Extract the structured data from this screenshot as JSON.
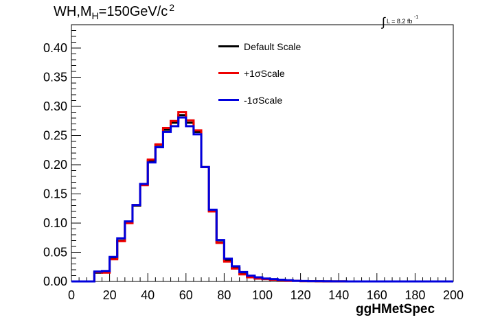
{
  "header": {
    "title_main": "WH,M",
    "title_sub": "H",
    "title_rest": "=150GeV/c",
    "title_sup": "2",
    "lumi_integral": "∫",
    "lumi_text": "L = 8.2 fb",
    "lumi_sup": "-1"
  },
  "chart_data": {
    "type": "line",
    "xlabel": "ggHMetSpec",
    "ylabel": "",
    "xlim": [
      0,
      200
    ],
    "ylim": [
      0,
      0.44
    ],
    "grid": false,
    "legend_position": "top-center",
    "x_ticks": [
      "0",
      "20",
      "40",
      "60",
      "80",
      "100",
      "120",
      "140",
      "160",
      "180",
      "200"
    ],
    "y_ticks": [
      "0.00",
      "0.05",
      "0.10",
      "0.15",
      "0.20",
      "0.25",
      "0.30",
      "0.35",
      "0.40"
    ],
    "bin_edges": [
      0,
      4,
      8,
      12,
      16,
      20,
      24,
      28,
      32,
      36,
      40,
      44,
      48,
      52,
      56,
      60,
      64,
      68,
      72,
      76,
      80,
      84,
      88,
      92,
      96,
      100,
      104,
      108,
      112,
      116,
      120,
      124,
      128,
      132,
      136,
      140,
      144,
      148,
      152,
      156,
      160,
      164,
      168,
      172,
      176,
      180,
      184,
      188,
      192,
      196,
      200
    ],
    "series": [
      {
        "name": "Default Scale",
        "color": "#000000",
        "values": [
          0,
          0,
          0,
          0.015,
          0.016,
          0.04,
          0.07,
          0.101,
          0.13,
          0.166,
          0.207,
          0.234,
          0.26,
          0.272,
          0.285,
          0.272,
          0.256,
          0.196,
          0.121,
          0.067,
          0.036,
          0.023,
          0.013,
          0.008,
          0.005,
          0.004,
          0.003,
          0.002,
          0.001,
          0.001,
          0.0005,
          0.0004,
          0.0003,
          0.0002,
          0.0002,
          0.0001,
          0,
          0,
          0,
          0,
          0,
          0,
          0,
          0,
          0,
          0,
          0,
          0,
          0,
          0
        ]
      },
      {
        "name": "+1σScale",
        "color": "#ee0000",
        "values": [
          0,
          0,
          0,
          0.016,
          0.015,
          0.038,
          0.069,
          0.1,
          0.131,
          0.165,
          0.209,
          0.235,
          0.263,
          0.275,
          0.29,
          0.276,
          0.259,
          0.196,
          0.12,
          0.066,
          0.034,
          0.022,
          0.012,
          0.007,
          0.005,
          0.004,
          0.003,
          0.002,
          0.001,
          0.001,
          0.0005,
          0.0004,
          0.0003,
          0.0002,
          0.0002,
          0.0001,
          0,
          0,
          0,
          0,
          0,
          0,
          0,
          0,
          0,
          0,
          0,
          0,
          0,
          0
        ]
      },
      {
        "name": "-1σScale",
        "color": "#0000dd",
        "values": [
          0,
          0,
          0,
          0.017,
          0.018,
          0.042,
          0.074,
          0.103,
          0.131,
          0.167,
          0.204,
          0.23,
          0.256,
          0.266,
          0.281,
          0.266,
          0.252,
          0.196,
          0.123,
          0.071,
          0.039,
          0.026,
          0.016,
          0.01,
          0.007,
          0.005,
          0.004,
          0.003,
          0.002,
          0.001,
          0.0007,
          0.0005,
          0.0004,
          0.0003,
          0.0002,
          0.0001,
          0,
          0,
          0,
          0,
          0,
          0,
          0,
          0,
          0,
          0,
          0,
          0,
          0,
          0
        ]
      }
    ]
  }
}
